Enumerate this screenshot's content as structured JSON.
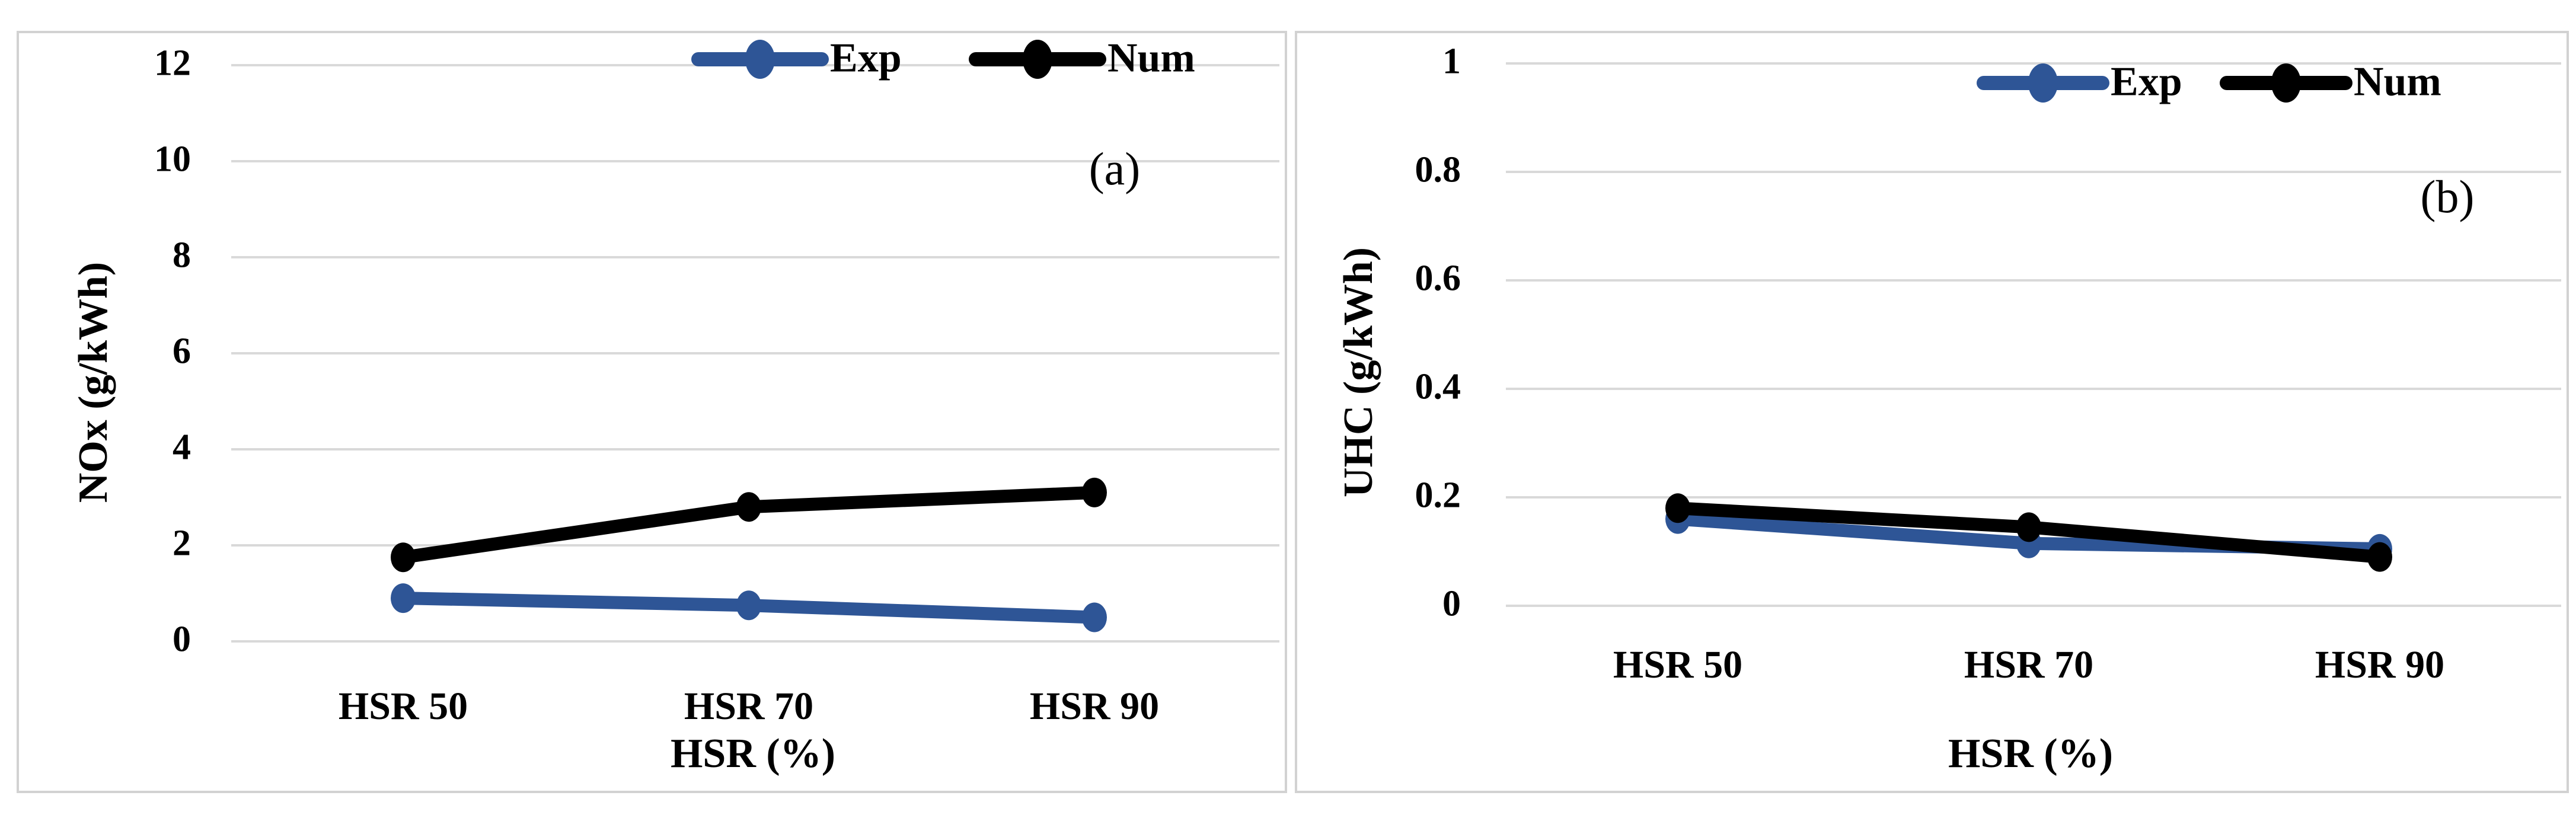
{
  "figure": {
    "background_color": "#ffffff",
    "panel_border_color": "#d2d2d2",
    "gridline_color": "#d9d9d9",
    "text_color": "#000000",
    "accent_blue": "#2e5596",
    "accent_black": "#000000"
  },
  "chart_data": [
    {
      "type": "line",
      "panel_label": "(a)",
      "title": "",
      "xlabel": "HSR (%)",
      "ylabel": "NOx (g/kWh)",
      "categories": [
        "HSR 50",
        "HSR 70",
        "HSR 90"
      ],
      "x_values_hsr_percent": [
        50,
        70,
        90
      ],
      "series": [
        {
          "name": "Exp",
          "color": "#2e5596",
          "values": [
            0.9,
            0.75,
            0.5
          ]
        },
        {
          "name": "Num",
          "color": "#000000",
          "values": [
            1.75,
            2.8,
            3.1
          ]
        }
      ],
      "ylim": [
        0,
        12
      ],
      "ytick_labels": [
        "0",
        "2",
        "4",
        "6",
        "8",
        "10",
        "12"
      ],
      "grid": true,
      "legend_position": "top-center",
      "legend_entries": [
        "Exp",
        "Num"
      ]
    },
    {
      "type": "line",
      "panel_label": "(b)",
      "title": "",
      "xlabel": "HSR (%)",
      "ylabel": "UHC (g/kWh)",
      "categories": [
        "HSR 50",
        "HSR 70",
        "HSR 90"
      ],
      "x_values_hsr_percent": [
        50,
        70,
        90
      ],
      "series": [
        {
          "name": "Exp",
          "color": "#2e5596",
          "values": [
            0.16,
            0.115,
            0.105
          ]
        },
        {
          "name": "Num",
          "color": "#000000",
          "values": [
            0.18,
            0.145,
            0.09
          ]
        }
      ],
      "ylim": [
        0,
        1
      ],
      "ytick_labels": [
        "0",
        "0.2",
        "0.4",
        "0.6",
        "0.8",
        "1"
      ],
      "grid": true,
      "legend_position": "top-right",
      "legend_entries": [
        "Exp",
        "Num"
      ]
    }
  ]
}
